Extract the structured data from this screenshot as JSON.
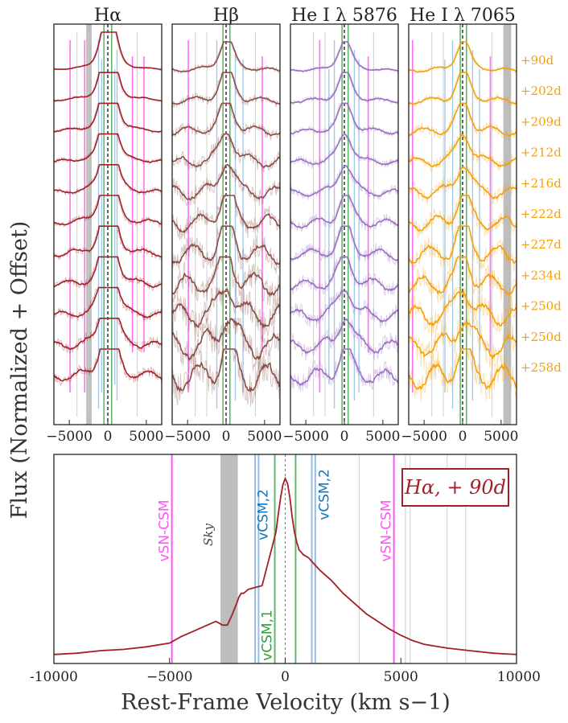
{
  "chart_data": [
    {
      "type": "line",
      "title": "Hα",
      "xlim": [
        -7000,
        7000
      ],
      "xticks": [
        -5000,
        0,
        5000
      ],
      "xtick_labels": [
        "−5000",
        "0",
        "5000"
      ],
      "color": "#a32027",
      "sky_band": [
        -2800,
        -2100
      ],
      "profile": {
        "peak": 2.2,
        "core_width": 900,
        "wing_width": 3200,
        "wing_amp": 0.5,
        "noise_base": 0.03,
        "noise_growth": 0.018
      },
      "magenta_lines": [
        -4900,
        4700,
        -3000,
        3200
      ],
      "blue_lines": [
        -1200,
        1200,
        -800,
        900
      ],
      "green_lines": [
        -500,
        500
      ]
    },
    {
      "type": "line",
      "title": "Hβ",
      "xlim": [
        -7000,
        7000
      ],
      "xticks": [
        -5000,
        0,
        5000
      ],
      "xtick_labels": [
        "−5000",
        "0",
        "5000"
      ],
      "color": "#8b4f47",
      "profile": {
        "peak": 1.1,
        "core_width": 800,
        "wing_width": 2500,
        "wing_amp": 0.35,
        "noise_base": 0.09,
        "noise_growth": 0.06
      },
      "magenta_lines": [
        -4900,
        4700
      ],
      "blue_lines": [
        -1200,
        1200,
        2200
      ],
      "green_lines": [
        -400,
        500
      ]
    },
    {
      "type": "line",
      "title": "He I λ 5876",
      "xlim": [
        -7000,
        7000
      ],
      "xticks": [
        -5000,
        0,
        5000
      ],
      "xtick_labels": [
        "−5000",
        "0",
        "5000"
      ],
      "color": "#9b6fc1",
      "profile": {
        "peak": 1.0,
        "core_width": 800,
        "wing_width": 2500,
        "wing_amp": 0.3,
        "noise_base": 0.06,
        "noise_growth": 0.03
      },
      "magenta_lines": [
        -3200,
        3100
      ],
      "blue_lines": [
        -1300,
        1300,
        1900,
        -2000
      ],
      "green_lines": [
        -300,
        500
      ]
    },
    {
      "type": "line",
      "title": "He I λ 7065",
      "xlim": [
        -7000,
        7000
      ],
      "xticks": [
        -5000,
        0,
        5000
      ],
      "xtick_labels": [
        "−5000",
        "0",
        "5000"
      ],
      "color": "#f5a00a",
      "sky_band": [
        5300,
        6300
      ],
      "profile": {
        "peak": 1.0,
        "core_width": 800,
        "wing_width": 2500,
        "wing_amp": 0.3,
        "noise_base": 0.09,
        "noise_growth": 0.05
      },
      "magenta_lines": [
        -6500,
        3600
      ],
      "blue_lines": [
        -1300,
        1300,
        -2300,
        2200
      ],
      "green_lines": [
        -300,
        500
      ]
    },
    {
      "type": "line",
      "title": "Hα, + 90d",
      "xlabel": "Rest-Frame Velocity (km s−1)",
      "ylabel": "Flux (Normalized + Offset)",
      "xlim": [
        -10000,
        10000
      ],
      "xticks": [
        -10000,
        -5000,
        0,
        5000,
        10000
      ],
      "xtick_labels": [
        "-10000",
        "−5000",
        "0",
        "5000",
        "10000"
      ],
      "sky_band": [
        -2800,
        -2050
      ],
      "sky_label": "Sky",
      "x": [
        -10000,
        -9000,
        -8000,
        -7000,
        -6000,
        -5000,
        -4500,
        -4000,
        -3500,
        -3000,
        -2700,
        -2500,
        -2300,
        -2100,
        -2000,
        -1900,
        -1800,
        -1600,
        -1400,
        -1200,
        -1000,
        -800,
        -600,
        -400,
        -300,
        -200,
        -100,
        0,
        100,
        200,
        300,
        400,
        500,
        600,
        800,
        1000,
        1200,
        1500,
        2000,
        2500,
        3000,
        3500,
        4000,
        4500,
        5000,
        5500,
        6000,
        7000,
        8000,
        9000,
        10000
      ],
      "y": [
        0.02,
        0.03,
        0.05,
        0.06,
        0.08,
        0.11,
        0.16,
        0.2,
        0.24,
        0.28,
        0.25,
        0.25,
        0.33,
        0.42,
        0.47,
        0.5,
        0.5,
        0.53,
        0.54,
        0.55,
        0.56,
        0.7,
        0.84,
        0.98,
        1.12,
        1.25,
        1.35,
        1.4,
        1.36,
        1.25,
        1.1,
        0.98,
        0.9,
        0.84,
        0.8,
        0.78,
        0.74,
        0.68,
        0.6,
        0.5,
        0.42,
        0.34,
        0.28,
        0.22,
        0.17,
        0.13,
        0.1,
        0.07,
        0.05,
        0.03,
        0.02
      ],
      "ylim": [
        0,
        1.45
      ],
      "annotations": [
        {
          "text": "vSN-CSM",
          "x": -4900,
          "color": "#ff55f5"
        },
        {
          "text": "vCSM,2",
          "x": -1250,
          "color": "#1177bb"
        },
        {
          "text": "vCSM,2",
          "x": 1250,
          "color": "#1177bb"
        },
        {
          "text": "vCSM,1",
          "x": -450,
          "color": "#2e9e3e"
        },
        {
          "text": "vSN-CSM",
          "x": 4700,
          "color": "#ff55f5"
        }
      ],
      "magenta_lines": [
        -4900,
        4700
      ],
      "blue_lines": [
        -1300,
        -1150,
        1150,
        1300
      ],
      "green_lines": [
        -450,
        450
      ],
      "grey_lines": [
        3200,
        5200,
        5400,
        7000,
        7800
      ],
      "legend": "Hα, + 90d"
    }
  ],
  "epochs": [
    "+90d",
    "+202d",
    "+209d",
    "+212d",
    "+216d",
    "+222d",
    "+227d",
    "+234d",
    "+250d",
    "+250d",
    "+258d"
  ],
  "colors": {
    "halpha": "#a32027",
    "hbeta": "#8b4f47",
    "he5876": "#9b6fc1",
    "he7065": "#f5a00a",
    "magenta": "#ff55f5",
    "blue": "#6aa3d6",
    "green": "#3aa64a",
    "sky": "#bdbdbd"
  }
}
